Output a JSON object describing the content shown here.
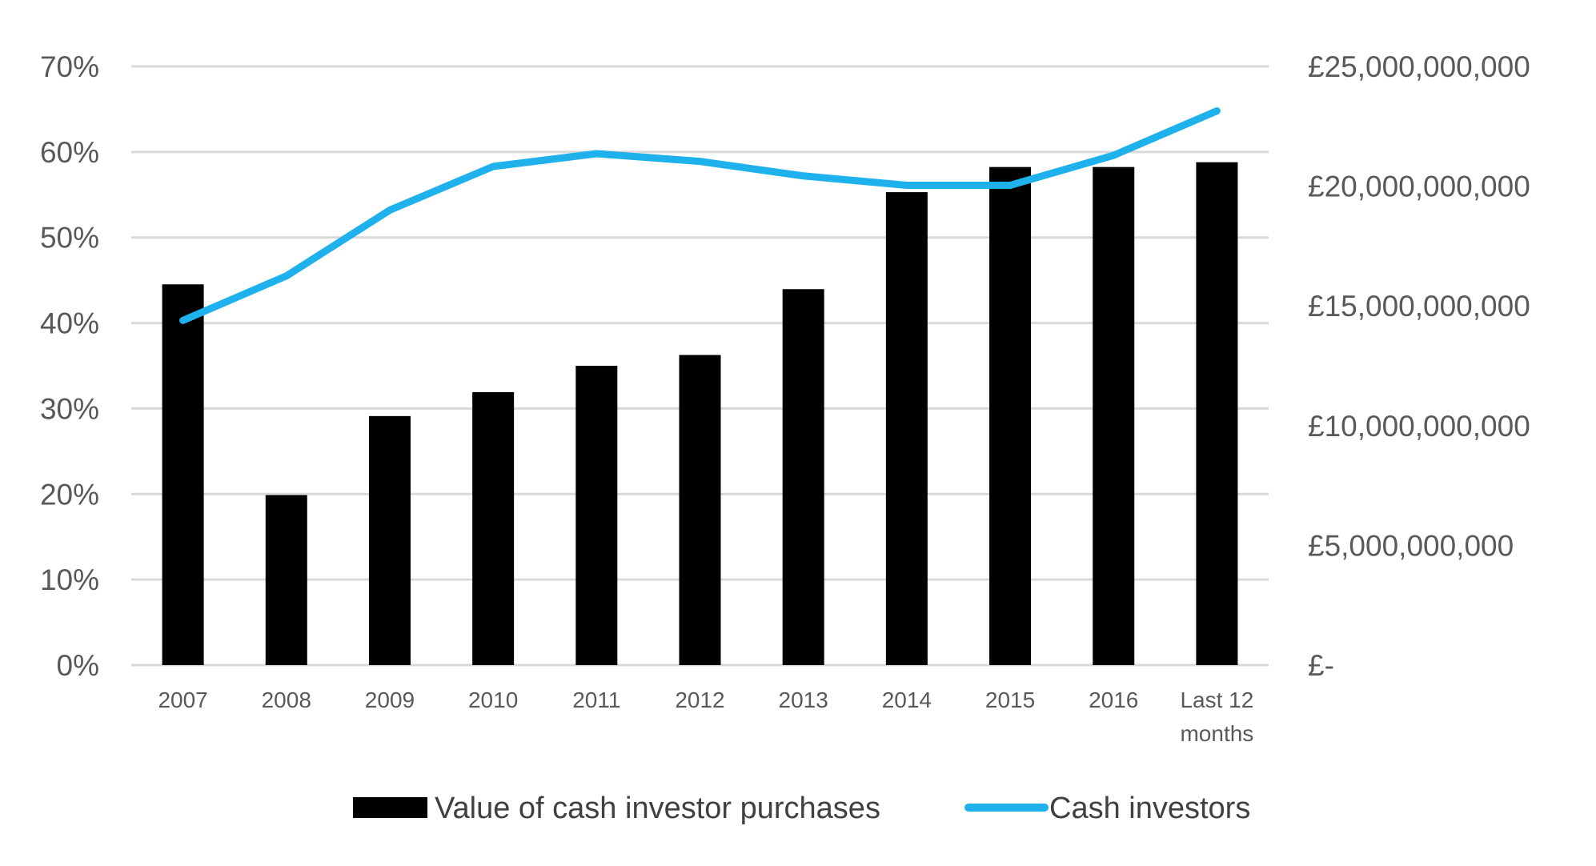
{
  "chart_data": {
    "type": "bar+line",
    "categories": [
      "2007",
      "2008",
      "2009",
      "2010",
      "2011",
      "2012",
      "2013",
      "2014",
      "2015",
      "2016",
      "Last 12 months"
    ],
    "category_lines": [
      [
        "2007"
      ],
      [
        "2008"
      ],
      [
        "2009"
      ],
      [
        "2010"
      ],
      [
        "2011"
      ],
      [
        "2012"
      ],
      [
        "2013"
      ],
      [
        "2014"
      ],
      [
        "2015"
      ],
      [
        "2016"
      ],
      [
        "Last 12",
        "months"
      ]
    ],
    "series": [
      {
        "name": "Value of cash investor purchases",
        "type": "bar",
        "axis": "right",
        "color": "#000000",
        "values": [
          15900000000,
          7100000000,
          10400000000,
          11400000000,
          12500000000,
          12950000000,
          15700000000,
          19750000000,
          20800000000,
          20800000000,
          21000000000
        ]
      },
      {
        "name": "Cash investors",
        "type": "line",
        "axis": "left",
        "color": "#1EB1EC",
        "values": [
          40.3,
          45.5,
          53.2,
          58.3,
          59.8,
          58.9,
          57.2,
          56.1,
          56.1,
          59.6,
          64.8
        ]
      }
    ],
    "left_axis": {
      "ylim": [
        0,
        70
      ],
      "ticks": [
        0,
        10,
        20,
        30,
        40,
        50,
        60,
        70
      ],
      "tick_labels": [
        "0%",
        "10%",
        "20%",
        "30%",
        "40%",
        "50%",
        "60%",
        "70%"
      ]
    },
    "right_axis": {
      "ylim": [
        0,
        25000000000
      ],
      "ticks": [
        0,
        5000000000,
        10000000000,
        15000000000,
        20000000000,
        25000000000
      ],
      "tick_labels": [
        "£-",
        "£5,000,000,000",
        "£10,000,000,000",
        "£15,000,000,000",
        "£20,000,000,000",
        "£25,000,000,000"
      ]
    },
    "grid": true,
    "legend": {
      "position": "bottom",
      "entries": [
        "Value of cash investor purchases",
        "Cash investors"
      ]
    }
  }
}
